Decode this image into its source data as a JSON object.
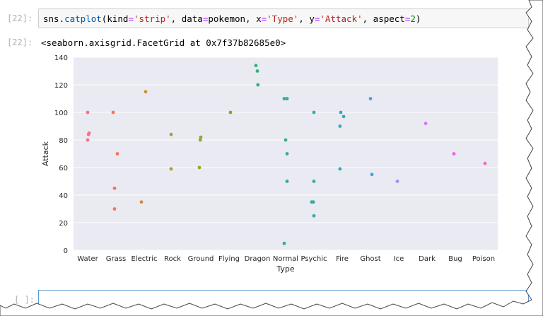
{
  "cells": {
    "input_prompt": "[22]:",
    "output_prompt": "[22]:",
    "empty_prompt": "[ ]:",
    "code": {
      "part1": "sns.",
      "fn": "catplot",
      "part2": "(kind",
      "eq1": "=",
      "str1": "'strip'",
      "part3": ", data",
      "eq2": "=",
      "part4": "pokemon, x",
      "eq3": "=",
      "str2": "'Type'",
      "part5": ", y",
      "eq4": "=",
      "str3": "'Attack'",
      "part6": ", aspect",
      "eq5": "=",
      "num1": "2",
      "part7": ")"
    },
    "output_text": "<seaborn.axisgrid.FacetGrid at 0x7f37b82685e0>"
  },
  "chart_data": {
    "type": "scatter",
    "xlabel": "Type",
    "ylabel": "Attack",
    "ylim": [
      0,
      140
    ],
    "yticks": [
      0,
      20,
      40,
      60,
      80,
      100,
      120,
      140
    ],
    "grid": true,
    "categories": [
      "Water",
      "Grass",
      "Electric",
      "Rock",
      "Ground",
      "Flying",
      "Dragon",
      "Normal",
      "Psychic",
      "Fire",
      "Ghost",
      "Ice",
      "Dark",
      "Bug",
      "Poison"
    ],
    "colors": [
      "#f77189",
      "#f7754f",
      "#ce8f31",
      "#ae9d31",
      "#97a431",
      "#77ab31",
      "#33b07a",
      "#35ae93",
      "#36ada4",
      "#38aaba",
      "#3ba3ec",
      "#a48cf4",
      "#cc7af4",
      "#f45cf2",
      "#f565cc"
    ],
    "points": [
      {
        "cat": "Water",
        "y": 100,
        "j": 0.0
      },
      {
        "cat": "Water",
        "y": 85,
        "j": 0.05
      },
      {
        "cat": "Water",
        "y": 84,
        "j": 0.03
      },
      {
        "cat": "Water",
        "y": 80,
        "j": 0.0
      },
      {
        "cat": "Grass",
        "y": 100,
        "j": -0.1
      },
      {
        "cat": "Grass",
        "y": 70,
        "j": 0.05
      },
      {
        "cat": "Grass",
        "y": 45,
        "j": -0.05
      },
      {
        "cat": "Grass",
        "y": 30,
        "j": -0.05
      },
      {
        "cat": "Electric",
        "y": 115,
        "j": 0.05
      },
      {
        "cat": "Electric",
        "y": 35,
        "j": -0.1
      },
      {
        "cat": "Rock",
        "y": 84,
        "j": -0.05
      },
      {
        "cat": "Rock",
        "y": 59,
        "j": -0.05
      },
      {
        "cat": "Ground",
        "y": 82,
        "j": 0.0
      },
      {
        "cat": "Ground",
        "y": 80,
        "j": -0.02
      },
      {
        "cat": "Ground",
        "y": 60,
        "j": -0.05
      },
      {
        "cat": "Flying",
        "y": 100,
        "j": 0.05
      },
      {
        "cat": "Dragon",
        "y": 134,
        "j": -0.05
      },
      {
        "cat": "Dragon",
        "y": 130,
        "j": 0.0
      },
      {
        "cat": "Dragon",
        "y": 120,
        "j": 0.02
      },
      {
        "cat": "Normal",
        "y": 110,
        "j": -0.05
      },
      {
        "cat": "Normal",
        "y": 110,
        "j": 0.05
      },
      {
        "cat": "Normal",
        "y": 80,
        "j": 0.0
      },
      {
        "cat": "Normal",
        "y": 70,
        "j": 0.05
      },
      {
        "cat": "Normal",
        "y": 50,
        "j": 0.05
      },
      {
        "cat": "Normal",
        "y": 5,
        "j": -0.05
      },
      {
        "cat": "Psychic",
        "y": 100,
        "j": 0.0
      },
      {
        "cat": "Psychic",
        "y": 50,
        "j": 0.0
      },
      {
        "cat": "Psychic",
        "y": 35,
        "j": -0.08
      },
      {
        "cat": "Psychic",
        "y": 35,
        "j": -0.02
      },
      {
        "cat": "Psychic",
        "y": 25,
        "j": 0.0
      },
      {
        "cat": "Fire",
        "y": 100,
        "j": -0.05
      },
      {
        "cat": "Fire",
        "y": 97,
        "j": 0.05
      },
      {
        "cat": "Fire",
        "y": 90,
        "j": -0.08
      },
      {
        "cat": "Fire",
        "y": 59,
        "j": -0.08
      },
      {
        "cat": "Ghost",
        "y": 110,
        "j": 0.0
      },
      {
        "cat": "Ghost",
        "y": 55,
        "j": 0.05
      },
      {
        "cat": "Ice",
        "y": 50,
        "j": -0.05
      },
      {
        "cat": "Dark",
        "y": 92,
        "j": -0.05
      },
      {
        "cat": "Bug",
        "y": 70,
        "j": -0.05
      },
      {
        "cat": "Poison",
        "y": 63,
        "j": 0.05
      }
    ]
  }
}
